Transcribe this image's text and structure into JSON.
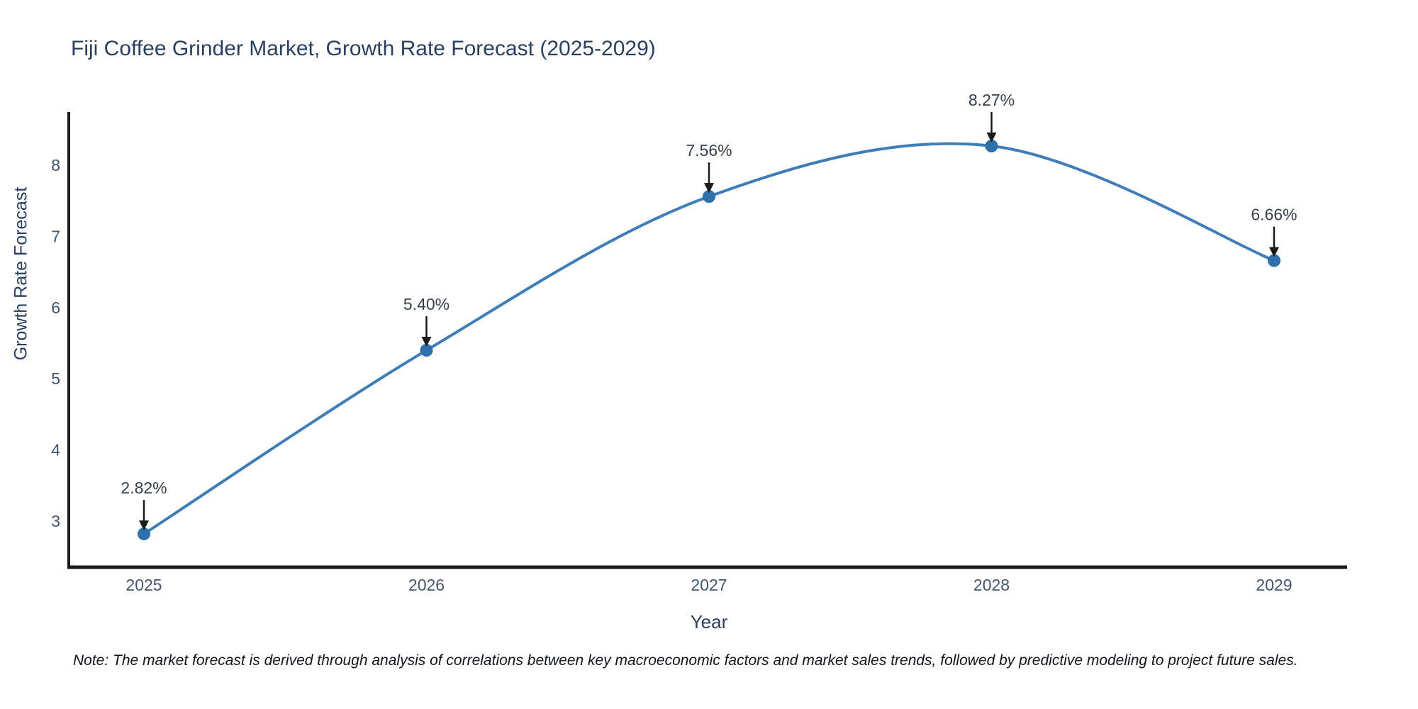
{
  "chart_data": {
    "type": "line",
    "title": "Fiji Coffee Grinder Market, Growth Rate Forecast (2025-2029)",
    "xlabel": "Year",
    "ylabel": "Growth Rate Forecast",
    "categories": [
      "2025",
      "2026",
      "2027",
      "2028",
      "2029"
    ],
    "values": [
      2.82,
      5.4,
      7.56,
      8.27,
      6.66
    ],
    "point_labels": [
      "2.82%",
      "5.40%",
      "7.56%",
      "8.27%",
      "6.66%"
    ],
    "yticks": [
      3,
      4,
      5,
      6,
      7,
      8
    ],
    "ylim": [
      2.35,
      8.75
    ],
    "grid": false,
    "legend": "none",
    "line_shape": "spline",
    "line_color": "#3e7db8",
    "marker_color": "#2e70ab",
    "axis_line_color": "#1a1a1a",
    "tick_color": "#42546e",
    "annotation_color": "#333f4d",
    "arrow_color": "#1a1a1a"
  },
  "note": "Note: The market forecast is derived through analysis of correlations between key macroeconomic factors and market sales trends, followed by predictive modeling to project future sales."
}
